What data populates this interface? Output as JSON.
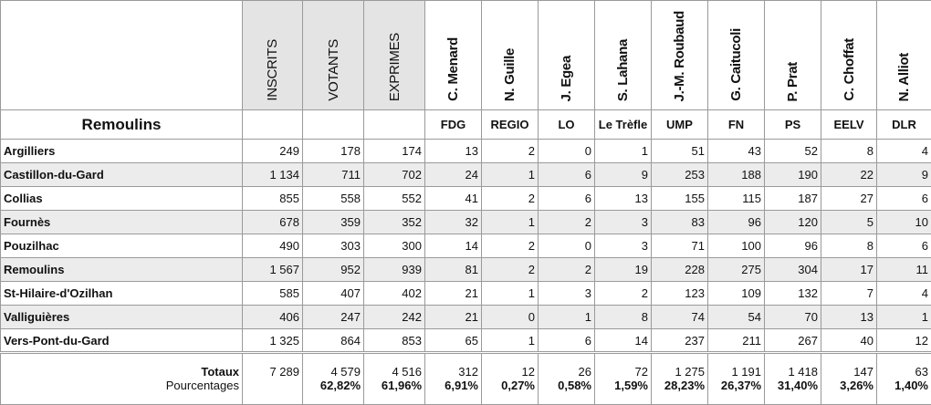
{
  "table": {
    "columns": [
      "INSCRITS",
      "VOTANTS",
      "EXPRIMES",
      "C. Menard",
      "N. Guille",
      "J. Egea",
      "S. Lahana",
      "J.-M. Roubaud",
      "G. Caitucoli",
      "P. Prat",
      "C. Choffat",
      "N. Alliot"
    ],
    "commune": "Remoulins",
    "parties": [
      "FDG",
      "REGIO",
      "LO",
      "Le Trèfle",
      "UMP",
      "FN",
      "PS",
      "EELV",
      "DLR"
    ],
    "rows": [
      {
        "name": "Argilliers",
        "values": [
          "249",
          "178",
          "174",
          "13",
          "2",
          "0",
          "1",
          "51",
          "43",
          "52",
          "8",
          "4"
        ]
      },
      {
        "name": "Castillon-du-Gard",
        "values": [
          "1 134",
          "711",
          "702",
          "24",
          "1",
          "6",
          "9",
          "253",
          "188",
          "190",
          "22",
          "9"
        ]
      },
      {
        "name": "Collias",
        "values": [
          "855",
          "558",
          "552",
          "41",
          "2",
          "6",
          "13",
          "155",
          "115",
          "187",
          "27",
          "6"
        ]
      },
      {
        "name": "Fournès",
        "values": [
          "678",
          "359",
          "352",
          "32",
          "1",
          "2",
          "3",
          "83",
          "96",
          "120",
          "5",
          "10"
        ]
      },
      {
        "name": "Pouzilhac",
        "values": [
          "490",
          "303",
          "300",
          "14",
          "2",
          "0",
          "3",
          "71",
          "100",
          "96",
          "8",
          "6"
        ]
      },
      {
        "name": "Remoulins",
        "values": [
          "1 567",
          "952",
          "939",
          "81",
          "2",
          "2",
          "19",
          "228",
          "275",
          "304",
          "17",
          "11"
        ]
      },
      {
        "name": "St-Hilaire-d'Ozilhan",
        "values": [
          "585",
          "407",
          "402",
          "21",
          "1",
          "3",
          "2",
          "123",
          "109",
          "132",
          "7",
          "4"
        ]
      },
      {
        "name": "Valliguières",
        "values": [
          "406",
          "247",
          "242",
          "21",
          "0",
          "1",
          "8",
          "74",
          "54",
          "70",
          "13",
          "1"
        ]
      },
      {
        "name": "Vers-Pont-du-Gard",
        "values": [
          "1 325",
          "864",
          "853",
          "65",
          "1",
          "6",
          "14",
          "237",
          "211",
          "267",
          "40",
          "12"
        ]
      }
    ],
    "totals": {
      "label": "Totaux",
      "values": [
        "7 289",
        "4 579",
        "4 516",
        "312",
        "12",
        "26",
        "72",
        "1 275",
        "1 191",
        "1 418",
        "147",
        "63"
      ]
    },
    "percentages": {
      "label": "Pourcentages",
      "values": [
        "62,82%",
        "61,96%",
        "6,91%",
        "0,27%",
        "0,58%",
        "1,59%",
        "28,23%",
        "26,37%",
        "31,40%",
        "3,26%",
        "1,40%"
      ]
    }
  }
}
